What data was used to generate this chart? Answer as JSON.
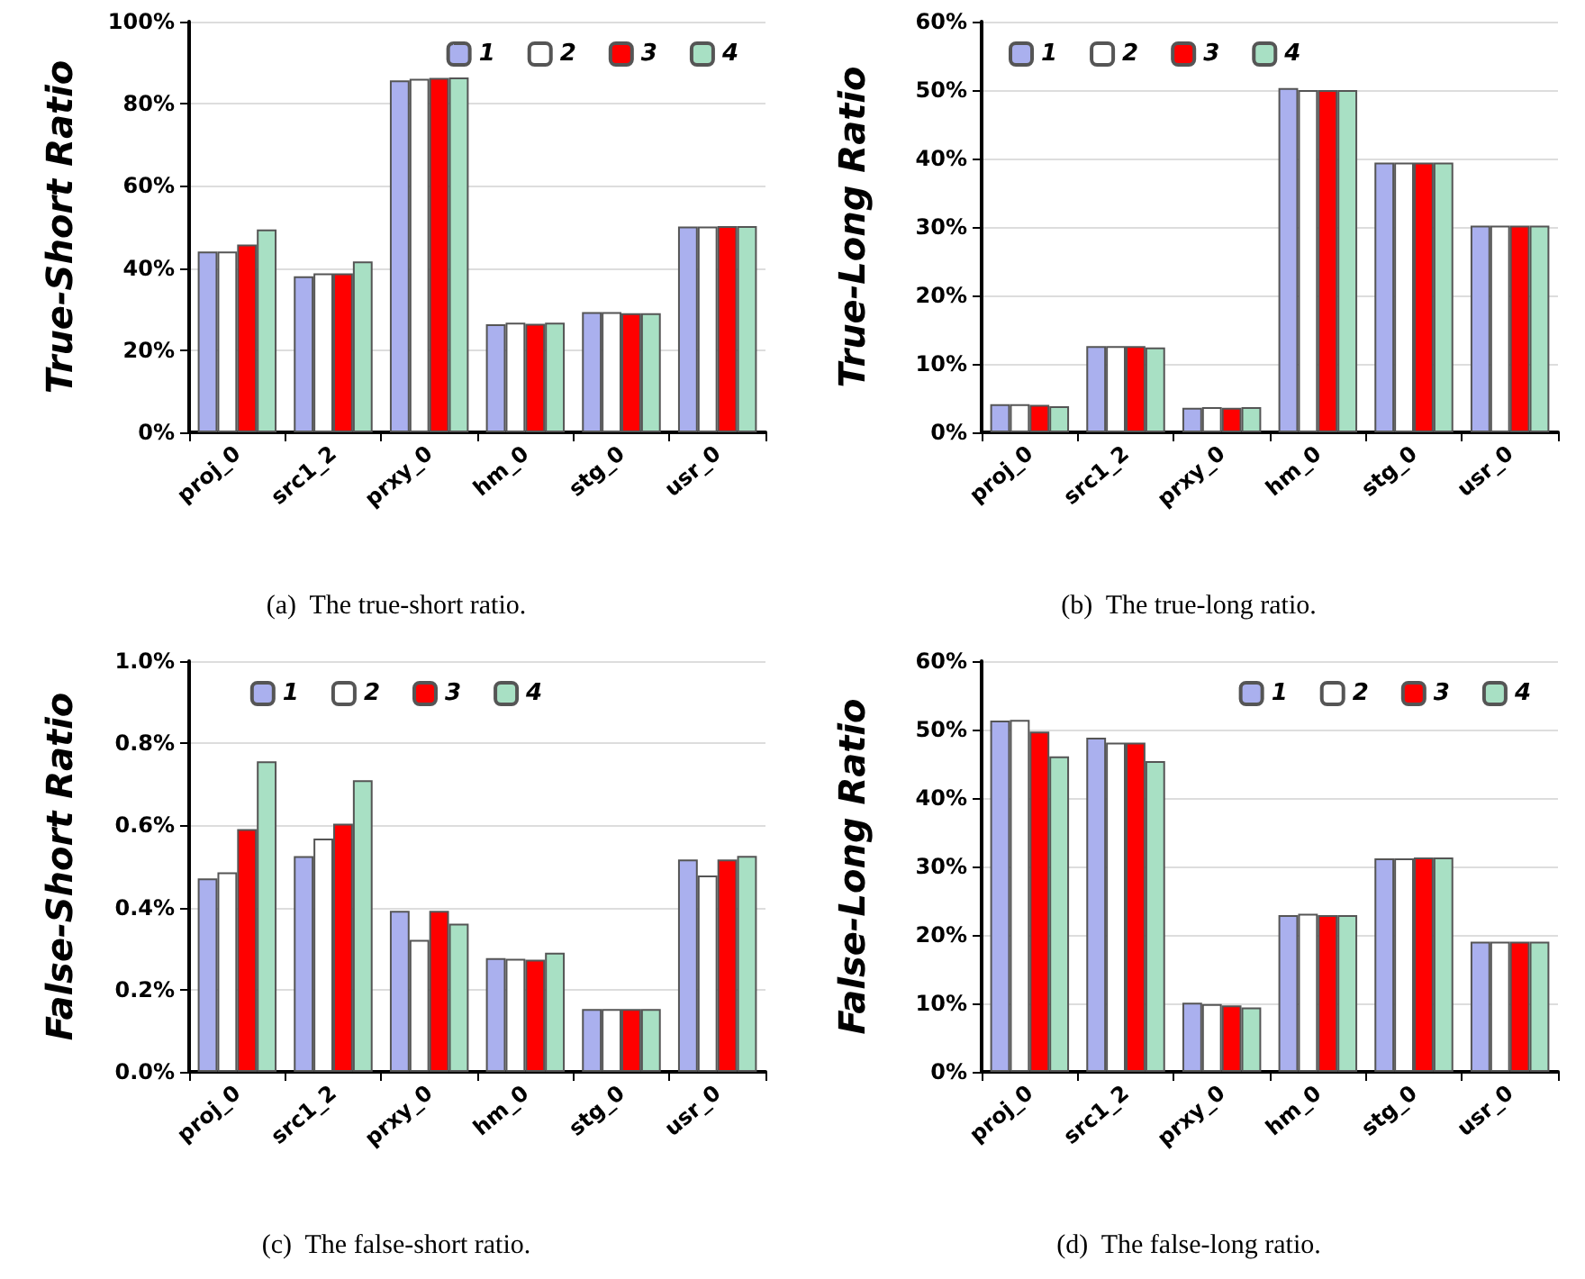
{
  "chart_data": [
    {
      "type": "bar",
      "title": "(a)  The true-short ratio.",
      "ylabel": "True-Short Ratio",
      "categories": [
        "proj_0",
        "src1_2",
        "prxy_0",
        "hm_0",
        "stg_0",
        "usr_0"
      ],
      "series": [
        {
          "name": "1",
          "color": "#aab0ee",
          "values": [
            44.0,
            38.0,
            85.7,
            26.3,
            29.3,
            50.1
          ]
        },
        {
          "name": "2",
          "color": "#ffffff",
          "values": [
            44.0,
            38.7,
            86.1,
            26.7,
            29.3,
            50.1
          ]
        },
        {
          "name": "3",
          "color": "#ff0000",
          "values": [
            45.7,
            38.7,
            86.3,
            26.4,
            29.0,
            50.2
          ]
        },
        {
          "name": "4",
          "color": "#a8e0c4",
          "values": [
            49.4,
            41.6,
            86.4,
            26.7,
            29.0,
            50.2
          ]
        }
      ],
      "ylim": [
        0,
        100
      ],
      "yticks": [
        {
          "value": 0,
          "label": "0%"
        },
        {
          "value": 20,
          "label": "20%"
        },
        {
          "value": 40,
          "label": "40%"
        },
        {
          "value": 60,
          "label": "60%"
        },
        {
          "value": 80,
          "label": "80%"
        },
        {
          "value": 100,
          "label": "100%"
        }
      ],
      "grid": "y",
      "legend": "top right"
    },
    {
      "type": "bar",
      "title": "(b)  The true-long ratio.",
      "ylabel": "True-Long Ratio",
      "categories": [
        "proj_0",
        "src1_2",
        "prxy_0",
        "hm_0",
        "stg_0",
        "usr_0"
      ],
      "series": [
        {
          "name": "1",
          "color": "#aab0ee",
          "values": [
            4.1,
            12.6,
            3.6,
            50.3,
            39.4,
            30.2
          ]
        },
        {
          "name": "2",
          "color": "#ffffff",
          "values": [
            4.1,
            12.6,
            3.7,
            50.0,
            39.4,
            30.2
          ]
        },
        {
          "name": "3",
          "color": "#ff0000",
          "values": [
            4.0,
            12.6,
            3.6,
            50.0,
            39.4,
            30.2
          ]
        },
        {
          "name": "4",
          "color": "#a8e0c4",
          "values": [
            3.8,
            12.4,
            3.7,
            50.0,
            39.4,
            30.2
          ]
        }
      ],
      "ylim": [
        0,
        60
      ],
      "yticks": [
        {
          "value": 0,
          "label": "0%"
        },
        {
          "value": 10,
          "label": "10%"
        },
        {
          "value": 20,
          "label": "20%"
        },
        {
          "value": 30,
          "label": "30%"
        },
        {
          "value": 40,
          "label": "40%"
        },
        {
          "value": 50,
          "label": "50%"
        },
        {
          "value": 60,
          "label": "60%"
        }
      ],
      "grid": "y",
      "legend": "top left"
    },
    {
      "type": "bar",
      "title": "(c)  The false-short ratio.",
      "ylabel": "False-Short Ratio",
      "categories": [
        "proj_0",
        "src1_2",
        "prxy_0",
        "hm_0",
        "stg_0",
        "usr_0"
      ],
      "series": [
        {
          "name": "1",
          "color": "#aab0ee",
          "values": [
            0.471,
            0.525,
            0.392,
            0.277,
            0.153,
            0.517
          ]
        },
        {
          "name": "2",
          "color": "#ffffff",
          "values": [
            0.486,
            0.568,
            0.321,
            0.275,
            0.153,
            0.478
          ]
        },
        {
          "name": "3",
          "color": "#ff0000",
          "values": [
            0.591,
            0.604,
            0.392,
            0.273,
            0.153,
            0.517
          ]
        },
        {
          "name": "4",
          "color": "#a8e0c4",
          "values": [
            0.756,
            0.71,
            0.361,
            0.29,
            0.153,
            0.526
          ]
        }
      ],
      "ylim": [
        0,
        1
      ],
      "yticks": [
        {
          "value": 0,
          "label": "0.0%"
        },
        {
          "value": 0.2,
          "label": "0.2%"
        },
        {
          "value": 0.4,
          "label": "0.4%"
        },
        {
          "value": 0.6,
          "label": "0.6%"
        },
        {
          "value": 0.8,
          "label": "0.8%"
        },
        {
          "value": 1,
          "label": "1.0%"
        }
      ],
      "grid": "y",
      "legend": "top"
    },
    {
      "type": "bar",
      "title": "(d)  The false-long ratio.",
      "ylabel": "False-Long Ratio",
      "categories": [
        "proj_0",
        "src1_2",
        "prxy_0",
        "hm_0",
        "stg_0",
        "usr_0"
      ],
      "series": [
        {
          "name": "1",
          "color": "#aab0ee",
          "values": [
            51.3,
            48.8,
            10.1,
            22.9,
            31.2,
            19.0
          ]
        },
        {
          "name": "2",
          "color": "#ffffff",
          "values": [
            51.4,
            48.1,
            9.9,
            23.1,
            31.2,
            19.0
          ]
        },
        {
          "name": "3",
          "color": "#ff0000",
          "values": [
            49.7,
            48.1,
            9.7,
            22.9,
            31.3,
            19.0
          ]
        },
        {
          "name": "4",
          "color": "#a8e0c4",
          "values": [
            46.1,
            45.4,
            9.4,
            22.9,
            31.3,
            19.0
          ]
        }
      ],
      "ylim": [
        0,
        60
      ],
      "yticks": [
        {
          "value": 0,
          "label": "0%"
        },
        {
          "value": 10,
          "label": "10%"
        },
        {
          "value": 20,
          "label": "20%"
        },
        {
          "value": 30,
          "label": "30%"
        },
        {
          "value": 40,
          "label": "40%"
        },
        {
          "value": 50,
          "label": "50%"
        },
        {
          "value": 60,
          "label": "60%"
        }
      ],
      "grid": "y",
      "legend": "top right"
    }
  ]
}
